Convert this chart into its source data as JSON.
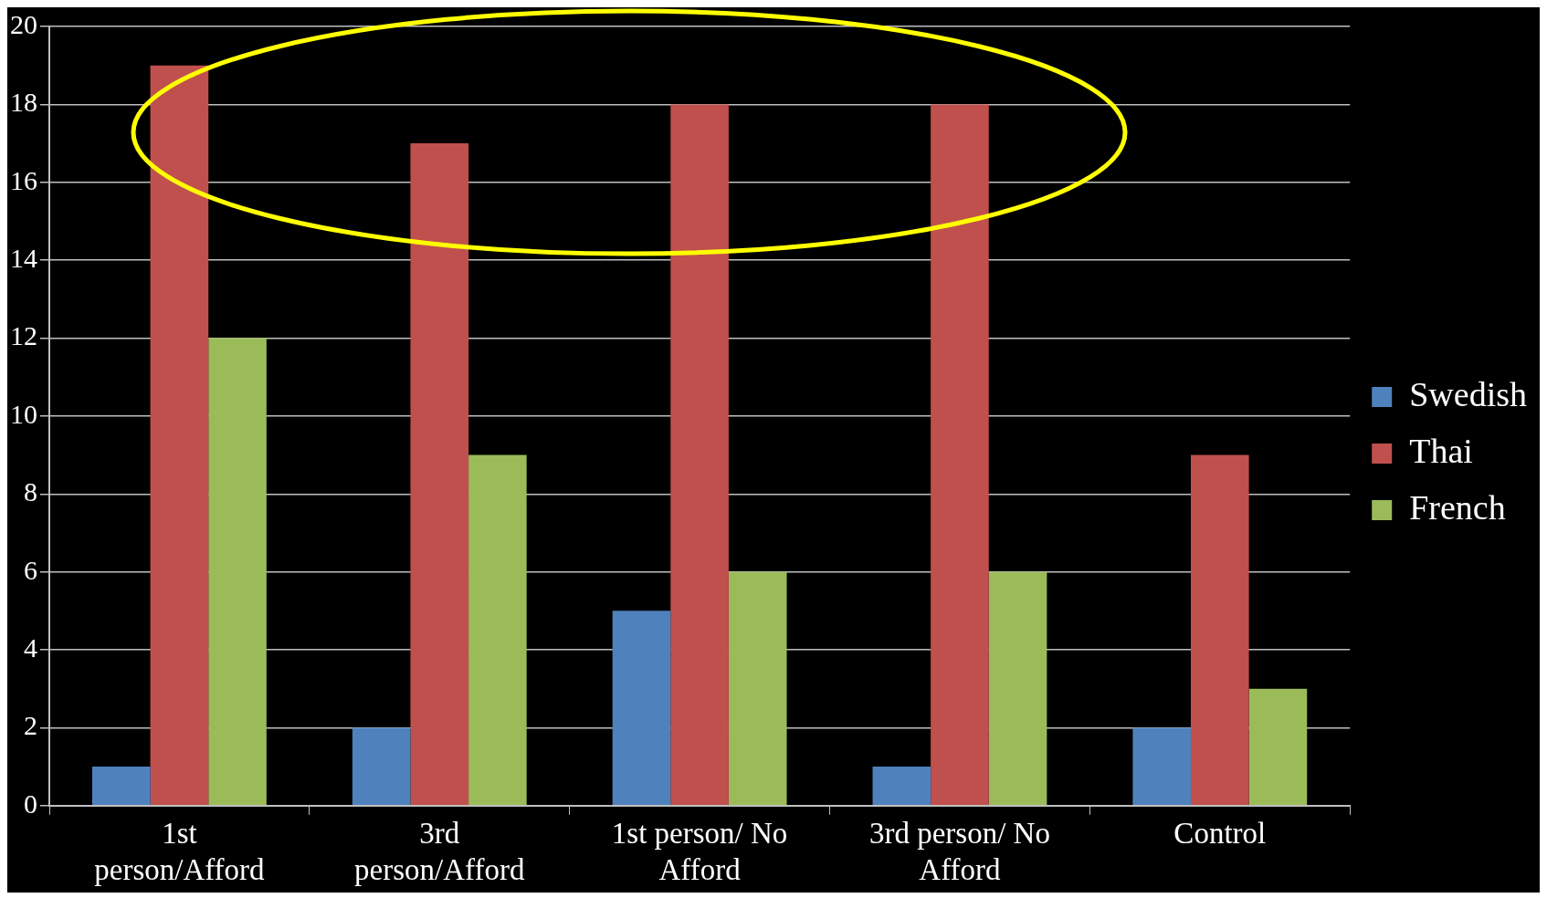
{
  "chart_data": {
    "type": "bar",
    "categories": [
      "1st person/Afford",
      "3rd person/Afford",
      "1st person/ No Afford",
      "3rd person/ No Afford",
      "Control"
    ],
    "series": [
      {
        "name": "Swedish",
        "color": "#4f81bd",
        "values": [
          1,
          2,
          5,
          1,
          2
        ]
      },
      {
        "name": "Thai",
        "color": "#c0504d",
        "values": [
          19,
          17,
          18,
          18,
          9
        ]
      },
      {
        "name": "French",
        "color": "#9bbb59",
        "values": [
          12,
          9,
          6,
          6,
          3
        ]
      }
    ],
    "ylim": [
      0,
      20
    ],
    "yticks": [
      0,
      2,
      4,
      6,
      8,
      10,
      12,
      14,
      16,
      18,
      20
    ],
    "grid": "y",
    "legend": "right"
  }
}
